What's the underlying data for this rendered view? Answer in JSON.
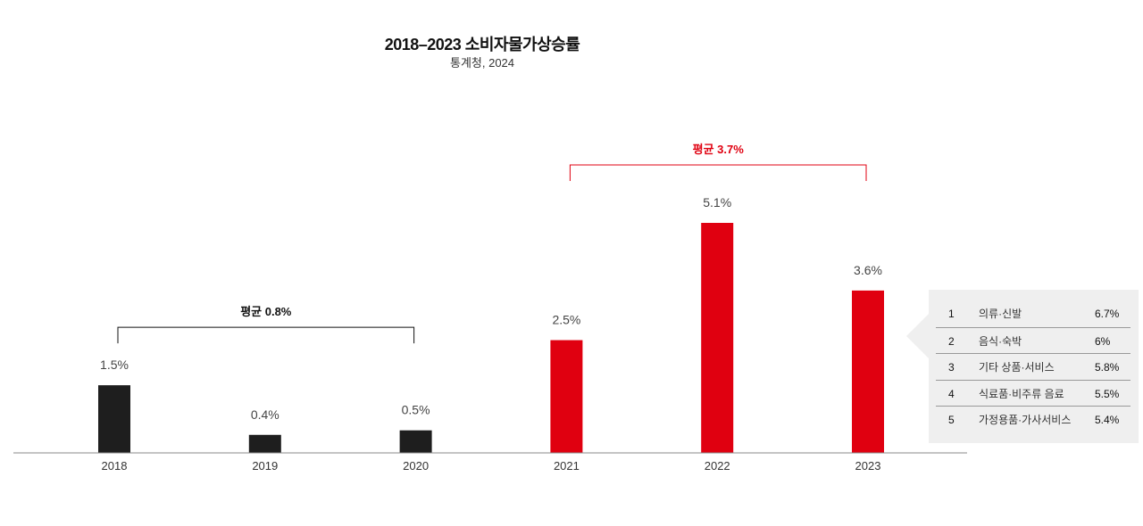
{
  "chart_data": {
    "type": "bar",
    "title": "2018–2023 소비자물가상승률",
    "subtitle": "통계청, 2024",
    "categories": [
      "2018",
      "2019",
      "2020",
      "2021",
      "2022",
      "2023"
    ],
    "values": [
      1.5,
      0.4,
      0.5,
      2.5,
      5.1,
      3.6
    ],
    "value_labels": [
      "1.5%",
      "0.4%",
      "0.5%",
      "2.5%",
      "5.1%",
      "3.6%"
    ],
    "colors": [
      "#1e1e1e",
      "#1e1e1e",
      "#1e1e1e",
      "#e00010",
      "#e00010",
      "#e00010"
    ],
    "ylim": [
      0,
      5.1
    ],
    "xlabel": "",
    "ylabel": "",
    "grid": false,
    "annotations": [
      {
        "label": "평균 0.8%",
        "from": "2018",
        "to": "2020",
        "color": "#111111"
      },
      {
        "label": "평균 3.7%",
        "from": "2021",
        "to": "2023",
        "color": "#e00010"
      }
    ]
  },
  "ranking": {
    "items": [
      {
        "rank": "1",
        "name": "의류·신발",
        "value": "6.7%"
      },
      {
        "rank": "2",
        "name": "음식·숙박",
        "value": "6%"
      },
      {
        "rank": "3",
        "name": "기타 상품·서비스",
        "value": "5.8%"
      },
      {
        "rank": "4",
        "name": "식료품·비주류 음료",
        "value": "5.5%"
      },
      {
        "rank": "5",
        "name": "가정용품·가사서비스",
        "value": "5.4%"
      }
    ]
  }
}
